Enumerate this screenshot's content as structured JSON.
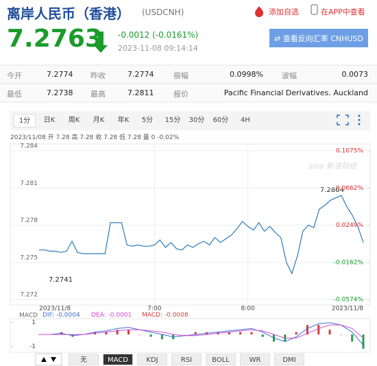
{
  "header": {
    "title": "离岸人民币（香港）",
    "code": "(USDCNH)",
    "links": [
      "添加自选",
      "在APP中查看"
    ]
  },
  "quote": {
    "price": "7.2763",
    "change": "-0.0012 (-0.0161%)",
    "time": "2023-11-08 09:14:14",
    "button": "查看反向汇率 CNHUSD"
  },
  "stats": {
    "rows": [
      [
        "今开",
        "7.2774",
        "昨收",
        "7.2774",
        "振幅",
        "0.0998%",
        "波幅",
        "0.0073"
      ],
      [
        "最低",
        "7.2738",
        "最高",
        "7.2811",
        "报价",
        "Pacific Financial Derivatives. Auckland"
      ]
    ]
  },
  "tabs": [
    "1分",
    "日K",
    "周K",
    "月K",
    "年K",
    "5分",
    "15分",
    "30分",
    "60分",
    "4H"
  ],
  "chart_info": "2023/11/08 开 7.28 高 7.28 收 7.28 低 7.28 量 0 -0.02%",
  "watermark": "sina 新浪财经",
  "indicator_tabs": [
    "无",
    "MACD",
    "KDJ",
    "RSI",
    "BOLL",
    "WR",
    "DMI"
  ],
  "chart_data": [
    {
      "type": "line",
      "annotations": [
        "7.2741",
        "7.2804"
      ],
      "categories": [
        "2023/11/8",
        null,
        null,
        null,
        null,
        null,
        null,
        null,
        null,
        null,
        null,
        null,
        null,
        null,
        null,
        null,
        null,
        null,
        null,
        null,
        null,
        "7:00",
        null,
        null,
        null,
        null,
        null,
        null,
        null,
        null,
        null,
        null,
        null,
        null,
        null,
        null,
        null,
        null,
        "8:00",
        null,
        null,
        null,
        null,
        null,
        null,
        null,
        null,
        null,
        null,
        null,
        null,
        null,
        null,
        null,
        null,
        null,
        null,
        null,
        null,
        "2023/11/8"
      ],
      "series": [
        {
          "color": "#2a7ab8",
          "values": [
            7.276,
            7.276,
            7.2759,
            7.2759,
            7.2758,
            7.2759,
            7.2767,
            7.2758,
            7.2757,
            7.2757,
            7.2757,
            7.2757,
            7.2757,
            7.2782,
            7.2782,
            7.2782,
            7.2764,
            7.2763,
            7.2764,
            7.2763,
            7.2763,
            7.2764,
            7.2768,
            7.2762,
            7.2766,
            7.2761,
            7.276,
            7.2764,
            7.2762,
            7.2765,
            7.2767,
            7.2764,
            7.277,
            7.2766,
            7.2769,
            7.2772,
            7.2777,
            7.2783,
            7.2779,
            7.2776,
            7.2782,
            7.2775,
            7.2779,
            7.2774,
            7.277,
            7.275,
            7.2741,
            7.2755,
            7.2775,
            7.278,
            7.2778,
            7.2793,
            7.2796,
            7.28,
            7.2802,
            7.2804,
            7.2795,
            7.2788,
            7.2779,
            7.2766
          ]
        }
      ],
      "ylim": [
        7.272,
        7.284
      ],
      "yticks": [
        7.284,
        7.281,
        7.278,
        7.275,
        7.272
      ],
      "y2lim": [
        -0.0574,
        0.1075
      ],
      "y2ticks": [
        {
          "value": 0.1075,
          "label": "0.1075%"
        },
        {
          "value": 0.0662,
          "label": "0.0662%"
        },
        {
          "value": 0.0249,
          "label": "0.0249%"
        },
        {
          "value": -0.0162,
          "label": "-0.0162%"
        },
        {
          "value": -0.0574,
          "label": "-0.0574%"
        }
      ],
      "up_color": "#e0302f",
      "down_color": "#1a9b2a",
      "grid": true
    },
    {
      "type": "macd",
      "title": "MACD",
      "legend_labels": [
        "DIF: -0.0004",
        "DEA: -0.0001",
        "MACD: -0.0008"
      ],
      "series": [
        {
          "name": "DIF",
          "color": "#3b6fd4",
          "values": [
            0,
            0,
            0.1,
            -0.1,
            0,
            0.2,
            0.3,
            0.5,
            0.6,
            0.4,
            0.2,
            0,
            -0.2,
            -0.1,
            0,
            0.1,
            0.2,
            0.3,
            0.4,
            0.5,
            0.2,
            -0.3,
            -0.6,
            -0.2,
            0.5,
            0.9,
            1.0,
            0.8,
            0.2,
            -0.9
          ]
        },
        {
          "name": "DEA",
          "color": "#d04ad0",
          "values": [
            0,
            0,
            0,
            0,
            0,
            0.1,
            0.2,
            0.3,
            0.4,
            0.4,
            0.3,
            0.2,
            0,
            -0.1,
            -0.1,
            0,
            0.1,
            0.2,
            0.3,
            0.4,
            0.3,
            0,
            -0.3,
            -0.3,
            0.1,
            0.5,
            0.8,
            0.8,
            0.5,
            -0.3
          ]
        },
        {
          "name": "MACD",
          "color": "#d43c3c",
          "negative_color": "#22a04a",
          "values": [
            0,
            0,
            0.2,
            -0.2,
            0,
            0.2,
            0.2,
            0.4,
            0.4,
            0,
            -0.2,
            -0.4,
            -0.4,
            0,
            0.2,
            0.2,
            0.2,
            0.2,
            0.2,
            0.2,
            -0.2,
            -0.6,
            -0.6,
            0.2,
            0.8,
            0.8,
            0.4,
            0,
            -0.6,
            -1.2
          ]
        }
      ],
      "ylim": [
        -1.5,
        1.5
      ],
      "yticks": [
        1,
        -1
      ]
    }
  ]
}
